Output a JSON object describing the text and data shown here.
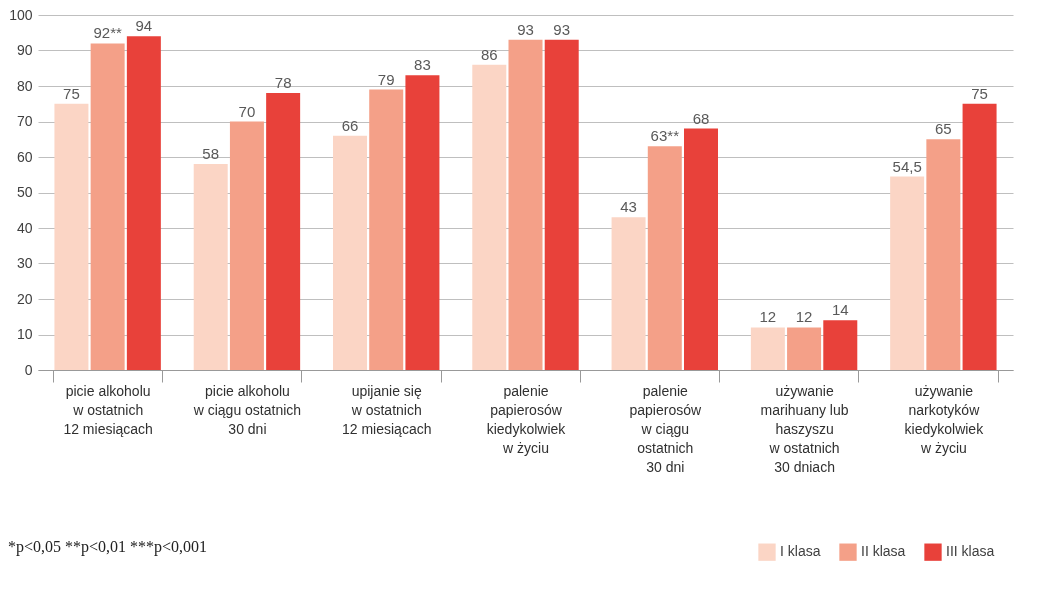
{
  "chart_data": {
    "type": "bar",
    "categories": [
      "picie alkoholu\nw ostatnich\n12 miesiącach",
      "picie alkoholu\nw ciągu ostatnich\n30 dni",
      "upijanie się\nw ostatnich\n12 miesiącach",
      "palenie\npapierosów\nkiedykolwiek\nw życiu",
      "palenie\npapierosów\nw ciągu\nostatnich\n30 dni",
      "używanie\nmarihuany lub\nhaszyszu\nw ostatnich\n30 dniach",
      "używanie\nnarkotyków\nkiedykolwiek\nw życiu"
    ],
    "series": [
      {
        "name": "I klasa",
        "color": "#fbd5c5",
        "values": [
          75,
          58,
          66,
          86,
          43,
          12,
          54.5
        ],
        "value_labels": [
          "75",
          "58",
          "66",
          "86",
          "43",
          "12",
          "54,5"
        ]
      },
      {
        "name": "II klasa",
        "color": "#f4a088",
        "values": [
          92,
          70,
          79,
          93,
          63,
          12,
          65
        ],
        "value_labels": [
          "92**",
          "70",
          "79",
          "93",
          "63**",
          "12",
          "65"
        ]
      },
      {
        "name": "III klasa",
        "color": "#e8413a",
        "values": [
          94,
          78,
          83,
          93,
          68,
          14,
          75
        ],
        "value_labels": [
          "94",
          "78",
          "83",
          "93",
          "68",
          "14",
          "75"
        ]
      }
    ],
    "ylim": [
      0,
      100
    ],
    "yticks": [
      0,
      10,
      20,
      30,
      40,
      50,
      60,
      70,
      80,
      90,
      100
    ],
    "grid": "y",
    "legend": "bottom right",
    "annotations": [
      "*p<0,05 **p<0,01 ***p<0,001"
    ]
  }
}
